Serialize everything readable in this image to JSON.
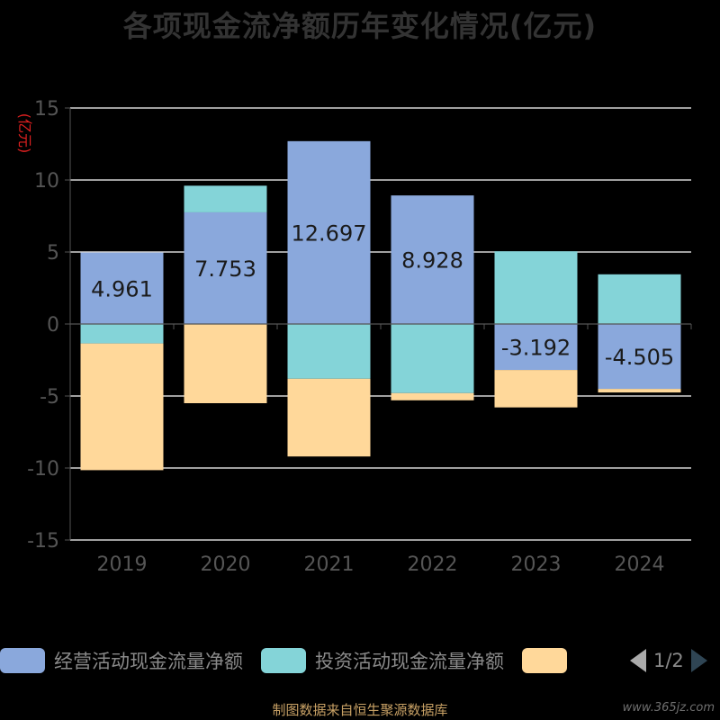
{
  "chart_data": {
    "type": "bar",
    "title": "各项现金流净额历年变化情况(亿元)",
    "ylabel": "(亿元)",
    "ylim": [
      -15,
      15
    ],
    "yticks": [
      15,
      10,
      5,
      0,
      -5,
      -10,
      -15
    ],
    "categories": [
      "2019",
      "2020",
      "2021",
      "2022",
      "2023",
      "2024"
    ],
    "stacked": true,
    "series": [
      {
        "name": "经营活动现金流量净额",
        "color": "#8aa8dc",
        "values": [
          4.961,
          7.753,
          12.697,
          8.928,
          -3.192,
          -4.505
        ]
      },
      {
        "name": "投资活动现金流量净额",
        "color": "#84d4d8",
        "values": [
          -1.35,
          1.85,
          -3.8,
          -4.8,
          5.05,
          3.45
        ]
      },
      {
        "name": "",
        "color": "#ffd89a",
        "values": [
          -8.8,
          -5.5,
          -5.4,
          -0.5,
          -2.6,
          -0.25
        ]
      }
    ],
    "data_labels": [
      "4.961",
      "7.753",
      "12.697",
      "8.928",
      "-3.192",
      "-4.505"
    ],
    "legend_position": "bottom",
    "grid": true
  },
  "legend": {
    "pager_text": "1/2"
  },
  "footer": {
    "source": "制图数据来自恒生聚源数据库",
    "watermark": "www.365jz.com"
  }
}
